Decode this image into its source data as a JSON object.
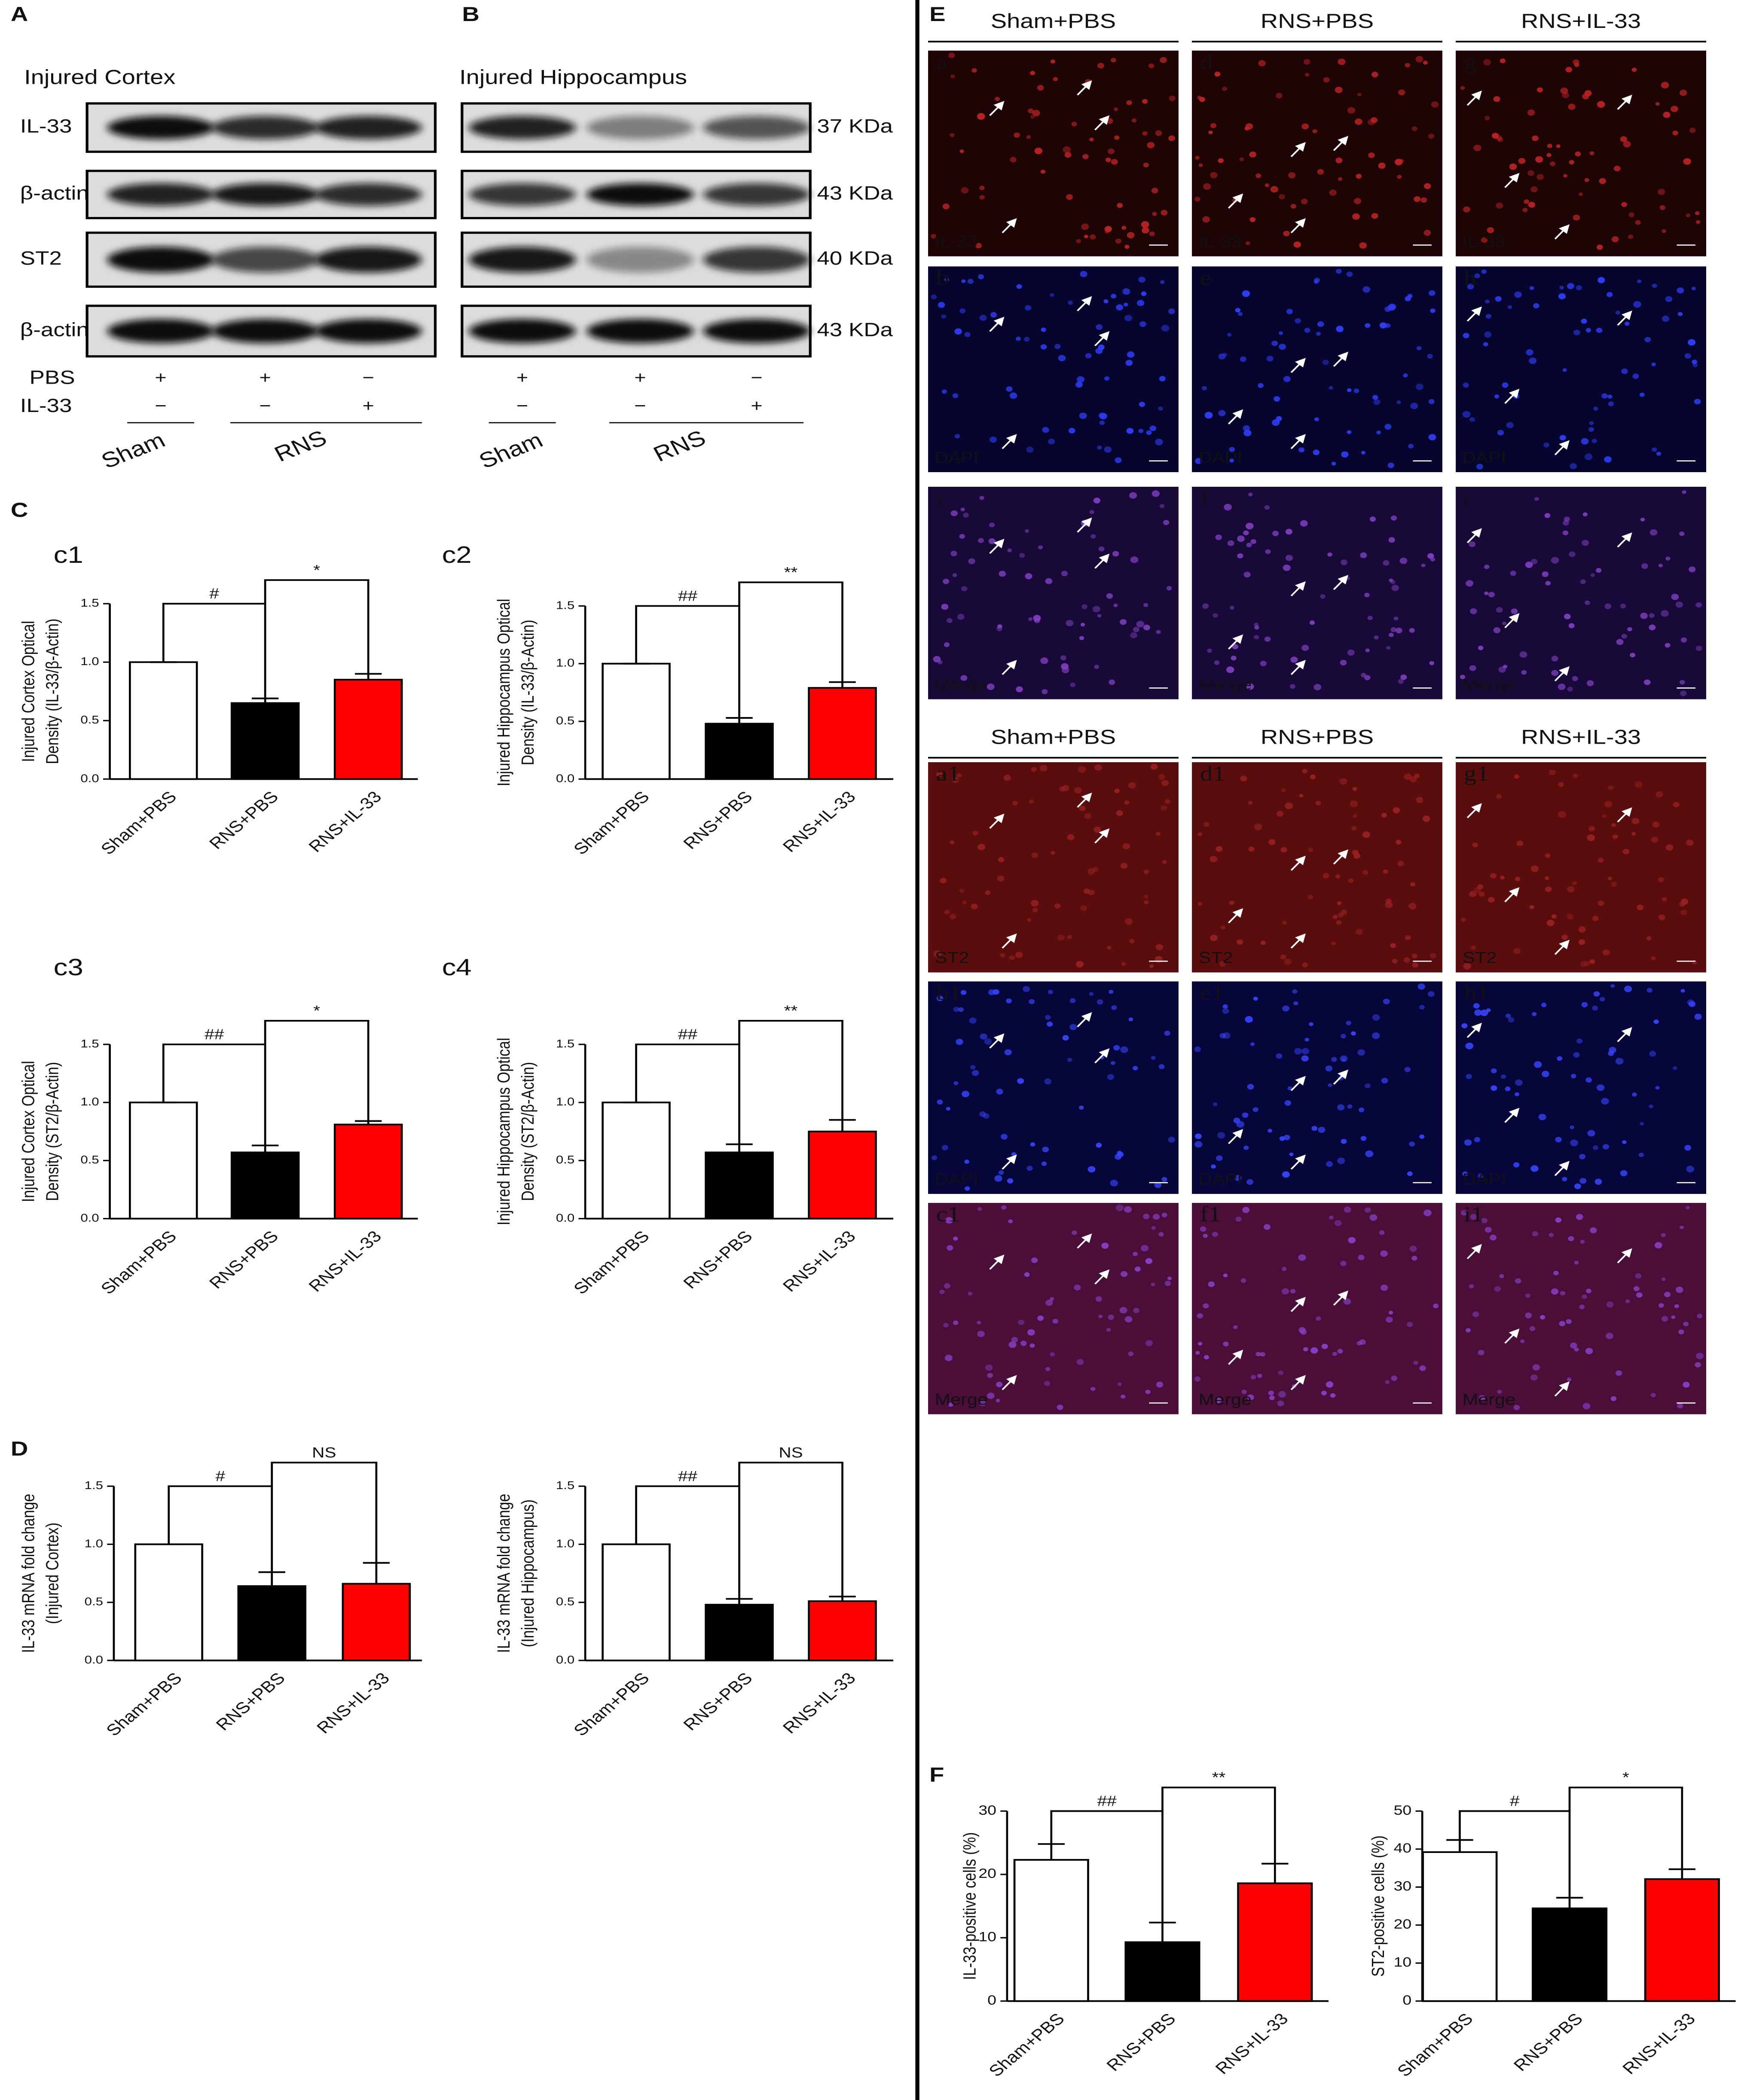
{
  "panel_labels": [
    "A",
    "B",
    "C",
    "D",
    "E",
    "F"
  ],
  "western_blot": {
    "panels": [
      {
        "title": "Injured Cortex"
      },
      {
        "title": "Injured Hippocampus"
      }
    ],
    "proteins": [
      "IL-33",
      "β-actin",
      "ST2",
      "β-actin"
    ],
    "sizes": [
      "37 KDa",
      "43 KDa",
      "40 KDa",
      "43 KDa"
    ],
    "treatments": [
      {
        "name": "PBS",
        "marks": [
          "+",
          "+",
          "−"
        ]
      },
      {
        "name": "IL-33",
        "marks": [
          "−",
          "−",
          "+"
        ]
      }
    ],
    "groups": [
      "Sham",
      "RNS"
    ]
  },
  "immunofluorescence": {
    "conditions": [
      "Sham+PBS",
      "RNS+PBS",
      "RNS+IL-33"
    ],
    "sets": [
      {
        "letters": [
          [
            "a",
            "d",
            "g"
          ],
          [
            "b",
            "e",
            "h"
          ],
          [
            "c",
            "f",
            "i"
          ]
        ],
        "channels": [
          "IL-33",
          "DAPI",
          "Merge"
        ]
      },
      {
        "letters": [
          [
            "a1",
            "d1",
            "g1"
          ],
          [
            "b1",
            "e1",
            "h1"
          ],
          [
            "c1",
            "f1",
            "i1"
          ]
        ],
        "channels": [
          "ST2",
          "DAPI",
          "Merge"
        ]
      }
    ]
  },
  "chart_data": [
    {
      "type": "bar",
      "label": "c1",
      "ylabel": [
        "Injured Cortex Optical",
        "Density (IL-33/β-Actin)"
      ],
      "categories": [
        "Sham+PBS",
        "RNS+PBS",
        "RNS+IL-33"
      ],
      "values": [
        1.0,
        0.65,
        0.85
      ],
      "errors": [
        0,
        0.04,
        0.05
      ],
      "colors": [
        "#ffffff",
        "#000000",
        "#ff0000"
      ],
      "ylim": [
        0,
        1.5
      ],
      "yticks": [
        {
          "value": 0,
          "label": "0.0"
        },
        {
          "value": 0.5,
          "label": "0.5"
        },
        {
          "value": 1,
          "label": "1.0"
        },
        {
          "value": 1.5,
          "label": "1.5"
        }
      ],
      "significance": [
        "#",
        "*"
      ]
    },
    {
      "type": "bar",
      "label": "c2",
      "ylabel": [
        "Injured Hippocampus  Optical",
        "Density (IL-33/β-Actin)"
      ],
      "categories": [
        "Sham+PBS",
        "RNS+PBS",
        "RNS+IL-33"
      ],
      "values": [
        1.0,
        0.48,
        0.79
      ],
      "errors": [
        0,
        0.05,
        0.05
      ],
      "colors": [
        "#ffffff",
        "#000000",
        "#ff0000"
      ],
      "ylim": [
        0,
        1.5
      ],
      "yticks": [
        {
          "value": 0,
          "label": "0.0"
        },
        {
          "value": 0.5,
          "label": "0.5"
        },
        {
          "value": 1,
          "label": "1.0"
        },
        {
          "value": 1.5,
          "label": "1.5"
        }
      ],
      "significance": [
        "##",
        "**"
      ]
    },
    {
      "type": "bar",
      "label": "c3",
      "ylabel": [
        "Injured Cortex Optical",
        "Density (ST2/β-Actin)"
      ],
      "categories": [
        "Sham+PBS",
        "RNS+PBS",
        "RNS+IL-33"
      ],
      "values": [
        1.0,
        0.57,
        0.81
      ],
      "errors": [
        0,
        0.06,
        0.03
      ],
      "colors": [
        "#ffffff",
        "#000000",
        "#ff0000"
      ],
      "ylim": [
        0,
        1.5
      ],
      "yticks": [
        {
          "value": 0,
          "label": "0.0"
        },
        {
          "value": 0.5,
          "label": "0.5"
        },
        {
          "value": 1,
          "label": "1.0"
        },
        {
          "value": 1.5,
          "label": "1.5"
        }
      ],
      "significance": [
        "##",
        "*"
      ]
    },
    {
      "type": "bar",
      "label": "c4",
      "ylabel": [
        "Injured Hippocampus Optical",
        "Density (ST2/β-Actin)"
      ],
      "categories": [
        "Sham+PBS",
        "RNS+PBS",
        "RNS+IL-33"
      ],
      "values": [
        1.0,
        0.57,
        0.75
      ],
      "errors": [
        0,
        0.07,
        0.1
      ],
      "colors": [
        "#ffffff",
        "#000000",
        "#ff0000"
      ],
      "ylim": [
        0,
        1.5
      ],
      "yticks": [
        {
          "value": 0,
          "label": "0.0"
        },
        {
          "value": 0.5,
          "label": "0.5"
        },
        {
          "value": 1,
          "label": "1.0"
        },
        {
          "value": 1.5,
          "label": "1.5"
        }
      ],
      "significance": [
        "##",
        "**"
      ]
    },
    {
      "type": "bar",
      "ylabel": [
        "IL-33 mRNA fold change",
        "(Injured Cortex)"
      ],
      "categories": [
        "Sham+PBS",
        "RNS+PBS",
        "RNS+IL-33"
      ],
      "values": [
        1.0,
        0.64,
        0.66
      ],
      "errors": [
        0,
        0.12,
        0.18
      ],
      "colors": [
        "#ffffff",
        "#000000",
        "#ff0000"
      ],
      "ylim": [
        0,
        1.5
      ],
      "yticks": [
        {
          "value": 0,
          "label": "0.0"
        },
        {
          "value": 0.5,
          "label": "0.5"
        },
        {
          "value": 1,
          "label": "1.0"
        },
        {
          "value": 1.5,
          "label": "1.5"
        }
      ],
      "significance": [
        "#",
        "NS"
      ]
    },
    {
      "type": "bar",
      "ylabel": [
        "IL-33 mRNA fold change",
        "(Injured Hippocampus)"
      ],
      "categories": [
        "Sham+PBS",
        "RNS+PBS",
        "RNS+IL-33"
      ],
      "values": [
        1.0,
        0.48,
        0.51
      ],
      "errors": [
        0,
        0.05,
        0.04
      ],
      "colors": [
        "#ffffff",
        "#000000",
        "#ff0000"
      ],
      "ylim": [
        0,
        1.5
      ],
      "yticks": [
        {
          "value": 0,
          "label": "0.0"
        },
        {
          "value": 0.5,
          "label": "0.5"
        },
        {
          "value": 1,
          "label": "1.0"
        },
        {
          "value": 1.5,
          "label": "1.5"
        }
      ],
      "significance": [
        "##",
        "NS"
      ]
    },
    {
      "type": "bar",
      "ylabel": [
        "IL-33-positive cells (%)"
      ],
      "categories": [
        "Sham+PBS",
        "RNS+PBS",
        "RNS+IL-33"
      ],
      "values": [
        22.3,
        9.3,
        18.6
      ],
      "errors": [
        2.5,
        3.1,
        3.1
      ],
      "colors": [
        "#ffffff",
        "#000000",
        "#ff0000"
      ],
      "ylim": [
        0,
        30
      ],
      "yticks": [
        0,
        10,
        20,
        30
      ],
      "significance": [
        "##",
        "**"
      ]
    },
    {
      "type": "bar",
      "ylabel": [
        "ST2-positive cells (%)"
      ],
      "categories": [
        "Sham+PBS",
        "RNS+PBS",
        "RNS+IL-33"
      ],
      "values": [
        39.2,
        24.4,
        32.1
      ],
      "errors": [
        3.2,
        2.8,
        2.6
      ],
      "colors": [
        "#ffffff",
        "#000000",
        "#ff0000"
      ],
      "ylim": [
        0,
        50
      ],
      "yticks": [
        0,
        10,
        20,
        30,
        40,
        50
      ],
      "significance": [
        "#",
        "*"
      ]
    }
  ]
}
